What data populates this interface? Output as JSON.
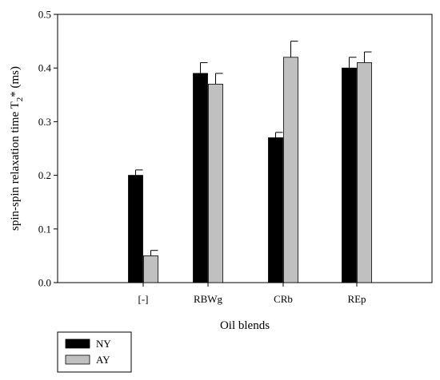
{
  "chart_data": {
    "type": "bar",
    "categories": [
      "[-]",
      "RBWg",
      "CRb",
      "REp"
    ],
    "series": [
      {
        "name": "NY",
        "values": [
          0.2,
          0.39,
          0.27,
          0.4
        ],
        "errors": [
          0.01,
          0.02,
          0.01,
          0.02
        ],
        "color": "#000000"
      },
      {
        "name": "AY",
        "values": [
          0.05,
          0.37,
          0.42,
          0.41
        ],
        "errors": [
          0.01,
          0.02,
          0.03,
          0.02
        ],
        "color": "#c0c0c0"
      }
    ],
    "ylim": [
      0,
      0.5
    ],
    "yticks": [
      0.0,
      0.1,
      0.2,
      0.3,
      0.4,
      0.5
    ],
    "ytick_labels": [
      "0.0",
      "0.1",
      "0.2",
      "0.3",
      "0.4",
      "0.5"
    ],
    "ylabel": {
      "main": "spin-spin relaxation time T",
      "subscript": "2",
      "suffix": "* (ms)"
    },
    "xlabel": "Oil blends",
    "legend_position": "bottom-left",
    "grid": false
  }
}
